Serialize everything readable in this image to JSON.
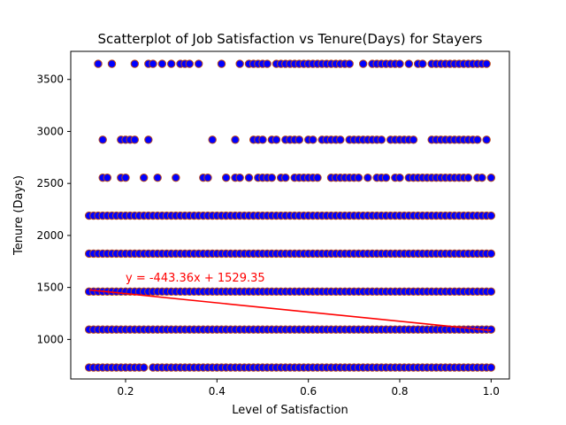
{
  "chart_data": {
    "type": "scatter",
    "title": "Scatterplot of Job Satisfaction vs Tenure(Days) for Stayers",
    "xlabel": "Level of Satisfaction",
    "ylabel": "Tenure (Days)",
    "xlim": [
      0.08,
      1.04
    ],
    "ylim": [
      620,
      3770
    ],
    "x_ticks": [
      0.2,
      0.4,
      0.6,
      0.8,
      1.0
    ],
    "x_tick_labels": [
      "0.2",
      "0.4",
      "0.6",
      "0.8",
      "1.0"
    ],
    "y_ticks": [
      1000,
      1500,
      2000,
      2500,
      3000,
      3500
    ],
    "y_tick_labels": [
      "1000",
      "1500",
      "2000",
      "2500",
      "3000",
      "3500"
    ],
    "grid": false,
    "marker_fill": "#0000ff",
    "marker_edge": "#b5451b",
    "series": [
      {
        "y": 730,
        "x": [
          0.12,
          0.13,
          0.14,
          0.15,
          0.16,
          0.17,
          0.18,
          0.19,
          0.2,
          0.21,
          0.22,
          0.23,
          0.24,
          0.26,
          0.27,
          0.28,
          0.29,
          0.3,
          0.31,
          0.32,
          0.33,
          0.34,
          0.35,
          0.36,
          0.37,
          0.38,
          0.39,
          0.4,
          0.41,
          0.42,
          0.43,
          0.44,
          0.45,
          0.46,
          0.47,
          0.48,
          0.49,
          0.5,
          0.51,
          0.52,
          0.53,
          0.54,
          0.55,
          0.56,
          0.57,
          0.58,
          0.59,
          0.6,
          0.61,
          0.62,
          0.63,
          0.64,
          0.65,
          0.66,
          0.67,
          0.68,
          0.69,
          0.7,
          0.71,
          0.72,
          0.73,
          0.74,
          0.75,
          0.76,
          0.77,
          0.78,
          0.79,
          0.8,
          0.81,
          0.82,
          0.83,
          0.84,
          0.85,
          0.86,
          0.87,
          0.88,
          0.89,
          0.9,
          0.91,
          0.92,
          0.93,
          0.94,
          0.95,
          0.96,
          0.97,
          0.98,
          0.99,
          1.0
        ]
      },
      {
        "y": 1095,
        "x": [
          0.12,
          0.13,
          0.14,
          0.15,
          0.16,
          0.17,
          0.18,
          0.19,
          0.2,
          0.21,
          0.22,
          0.23,
          0.24,
          0.25,
          0.26,
          0.27,
          0.28,
          0.29,
          0.3,
          0.31,
          0.32,
          0.33,
          0.34,
          0.35,
          0.36,
          0.37,
          0.38,
          0.39,
          0.4,
          0.41,
          0.42,
          0.43,
          0.44,
          0.45,
          0.46,
          0.47,
          0.48,
          0.49,
          0.5,
          0.51,
          0.52,
          0.53,
          0.54,
          0.55,
          0.56,
          0.57,
          0.58,
          0.59,
          0.6,
          0.61,
          0.62,
          0.63,
          0.64,
          0.65,
          0.66,
          0.67,
          0.68,
          0.69,
          0.7,
          0.71,
          0.72,
          0.73,
          0.74,
          0.75,
          0.76,
          0.77,
          0.78,
          0.79,
          0.8,
          0.81,
          0.82,
          0.83,
          0.84,
          0.85,
          0.86,
          0.87,
          0.88,
          0.89,
          0.9,
          0.91,
          0.92,
          0.93,
          0.94,
          0.95,
          0.96,
          0.97,
          0.98,
          0.99,
          1.0
        ]
      },
      {
        "y": 1460,
        "x": [
          0.12,
          0.13,
          0.14,
          0.15,
          0.16,
          0.17,
          0.18,
          0.19,
          0.2,
          0.21,
          0.22,
          0.23,
          0.24,
          0.25,
          0.26,
          0.27,
          0.28,
          0.29,
          0.3,
          0.31,
          0.32,
          0.33,
          0.34,
          0.35,
          0.36,
          0.37,
          0.38,
          0.39,
          0.4,
          0.41,
          0.42,
          0.43,
          0.44,
          0.45,
          0.46,
          0.47,
          0.48,
          0.49,
          0.5,
          0.51,
          0.52,
          0.53,
          0.54,
          0.55,
          0.56,
          0.57,
          0.58,
          0.59,
          0.6,
          0.61,
          0.62,
          0.63,
          0.64,
          0.65,
          0.66,
          0.67,
          0.68,
          0.69,
          0.7,
          0.71,
          0.72,
          0.73,
          0.74,
          0.75,
          0.76,
          0.77,
          0.78,
          0.79,
          0.8,
          0.81,
          0.82,
          0.83,
          0.84,
          0.85,
          0.86,
          0.87,
          0.88,
          0.89,
          0.9,
          0.91,
          0.92,
          0.93,
          0.94,
          0.95,
          0.96,
          0.97,
          0.98,
          0.99,
          1.0
        ]
      },
      {
        "y": 1825,
        "x": [
          0.12,
          0.13,
          0.14,
          0.15,
          0.16,
          0.17,
          0.18,
          0.19,
          0.2,
          0.21,
          0.22,
          0.23,
          0.24,
          0.25,
          0.26,
          0.27,
          0.28,
          0.29,
          0.3,
          0.31,
          0.32,
          0.33,
          0.34,
          0.35,
          0.36,
          0.37,
          0.38,
          0.39,
          0.4,
          0.41,
          0.42,
          0.43,
          0.44,
          0.45,
          0.46,
          0.47,
          0.48,
          0.49,
          0.5,
          0.51,
          0.52,
          0.53,
          0.54,
          0.55,
          0.56,
          0.57,
          0.58,
          0.59,
          0.6,
          0.61,
          0.62,
          0.63,
          0.64,
          0.65,
          0.66,
          0.67,
          0.68,
          0.69,
          0.7,
          0.71,
          0.72,
          0.73,
          0.74,
          0.75,
          0.76,
          0.77,
          0.78,
          0.79,
          0.8,
          0.81,
          0.82,
          0.83,
          0.84,
          0.85,
          0.86,
          0.87,
          0.88,
          0.89,
          0.9,
          0.91,
          0.92,
          0.93,
          0.94,
          0.95,
          0.96,
          0.97,
          0.98,
          0.99,
          1.0
        ]
      },
      {
        "y": 2190,
        "x": [
          0.12,
          0.13,
          0.14,
          0.15,
          0.16,
          0.17,
          0.18,
          0.19,
          0.2,
          0.21,
          0.22,
          0.23,
          0.24,
          0.25,
          0.26,
          0.27,
          0.28,
          0.29,
          0.3,
          0.31,
          0.32,
          0.33,
          0.34,
          0.35,
          0.36,
          0.37,
          0.38,
          0.39,
          0.4,
          0.41,
          0.42,
          0.43,
          0.44,
          0.45,
          0.46,
          0.47,
          0.48,
          0.49,
          0.5,
          0.51,
          0.52,
          0.53,
          0.54,
          0.55,
          0.56,
          0.57,
          0.58,
          0.59,
          0.6,
          0.61,
          0.62,
          0.63,
          0.64,
          0.65,
          0.66,
          0.67,
          0.68,
          0.69,
          0.7,
          0.71,
          0.72,
          0.73,
          0.74,
          0.75,
          0.76,
          0.77,
          0.78,
          0.79,
          0.8,
          0.81,
          0.82,
          0.83,
          0.84,
          0.85,
          0.86,
          0.87,
          0.88,
          0.89,
          0.9,
          0.91,
          0.92,
          0.93,
          0.94,
          0.95,
          0.96,
          0.97,
          0.98,
          0.99,
          1.0
        ]
      },
      {
        "y": 2555,
        "x": [
          0.15,
          0.16,
          0.19,
          0.2,
          0.24,
          0.27,
          0.31,
          0.37,
          0.38,
          0.42,
          0.44,
          0.45,
          0.47,
          0.49,
          0.5,
          0.51,
          0.52,
          0.54,
          0.55,
          0.57,
          0.58,
          0.59,
          0.6,
          0.61,
          0.62,
          0.65,
          0.66,
          0.67,
          0.68,
          0.69,
          0.7,
          0.71,
          0.73,
          0.75,
          0.76,
          0.77,
          0.79,
          0.8,
          0.82,
          0.83,
          0.84,
          0.85,
          0.86,
          0.87,
          0.88,
          0.89,
          0.9,
          0.91,
          0.92,
          0.93,
          0.94,
          0.95,
          0.97,
          0.98,
          1.0
        ]
      },
      {
        "y": 2920,
        "x": [
          0.15,
          0.19,
          0.2,
          0.21,
          0.22,
          0.25,
          0.39,
          0.44,
          0.48,
          0.49,
          0.5,
          0.52,
          0.53,
          0.55,
          0.56,
          0.57,
          0.58,
          0.6,
          0.61,
          0.63,
          0.64,
          0.65,
          0.66,
          0.67,
          0.69,
          0.7,
          0.71,
          0.72,
          0.73,
          0.74,
          0.75,
          0.76,
          0.78,
          0.79,
          0.8,
          0.81,
          0.82,
          0.83,
          0.87,
          0.88,
          0.89,
          0.9,
          0.91,
          0.92,
          0.93,
          0.94,
          0.95,
          0.96,
          0.97,
          0.99
        ]
      },
      {
        "y": 3650,
        "x": [
          0.14,
          0.17,
          0.22,
          0.25,
          0.26,
          0.28,
          0.3,
          0.32,
          0.33,
          0.34,
          0.36,
          0.41,
          0.45,
          0.47,
          0.48,
          0.49,
          0.5,
          0.51,
          0.53,
          0.54,
          0.55,
          0.56,
          0.57,
          0.58,
          0.59,
          0.6,
          0.61,
          0.62,
          0.63,
          0.64,
          0.65,
          0.66,
          0.67,
          0.68,
          0.69,
          0.72,
          0.74,
          0.75,
          0.76,
          0.77,
          0.78,
          0.79,
          0.8,
          0.82,
          0.84,
          0.85,
          0.87,
          0.88,
          0.89,
          0.9,
          0.91,
          0.92,
          0.93,
          0.94,
          0.95,
          0.96,
          0.97,
          0.98,
          0.99
        ]
      }
    ],
    "trendline": {
      "slope": -443.36,
      "intercept": 1529.35,
      "x_range": [
        0.12,
        1.0
      ],
      "color": "#ff0000",
      "label": "y = -443.36x + 1529.35",
      "label_anchor": [
        0.2,
        1600
      ]
    }
  }
}
